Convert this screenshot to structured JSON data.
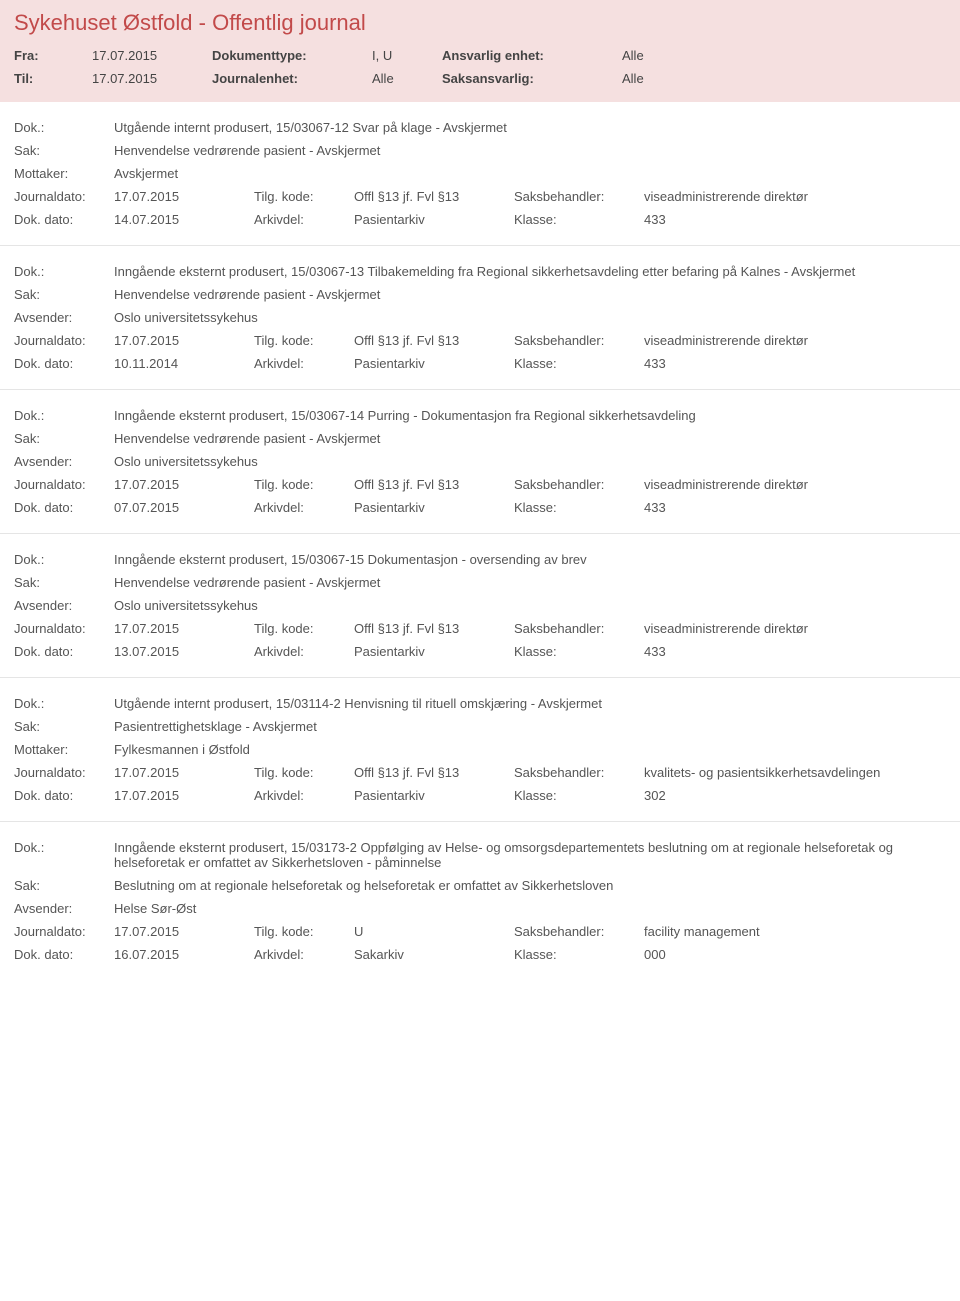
{
  "header": {
    "title": "Sykehuset Østfold - Offentlig journal",
    "row1": {
      "fra_label": "Fra:",
      "fra": "17.07.2015",
      "doktype_label": "Dokumenttype:",
      "doktype": "I, U",
      "enhet_label": "Ansvarlig enhet:",
      "enhet": "Alle"
    },
    "row2": {
      "til_label": "Til:",
      "til": "17.07.2015",
      "journalenhet_label": "Journalenhet:",
      "journalenhet": "Alle",
      "saks_label": "Saksansvarlig:",
      "saks": "Alle"
    }
  },
  "labels": {
    "dok": "Dok.:",
    "sak": "Sak:",
    "mottaker": "Mottaker:",
    "avsender": "Avsender:",
    "journaldato": "Journaldato:",
    "tilgkode": "Tilg. kode:",
    "saksbehandler": "Saksbehandler:",
    "dokdato": "Dok. dato:",
    "arkivdel": "Arkivdel:",
    "klasse": "Klasse:"
  },
  "entries": [
    {
      "dok": "Utgående internt produsert, 15/03067-12 Svar på klage - Avskjermet",
      "sak": "Henvendelse vedrørende pasient - Avskjermet",
      "party_label": "Mottaker:",
      "party": "Avskjermet",
      "journaldato": "17.07.2015",
      "tilgkode": "Offl §13 jf. Fvl §13",
      "saksbehandler": "viseadministrerende direktør",
      "dokdato": "14.07.2015",
      "arkivdel": "Pasientarkiv",
      "klasse": "433"
    },
    {
      "dok": "Inngående eksternt produsert, 15/03067-13 Tilbakemelding fra Regional sikkerhetsavdeling etter befaring på Kalnes - Avskjermet",
      "sak": "Henvendelse vedrørende pasient - Avskjermet",
      "party_label": "Avsender:",
      "party": "Oslo universitetssykehus",
      "journaldato": "17.07.2015",
      "tilgkode": "Offl §13 jf. Fvl §13",
      "saksbehandler": "viseadministrerende direktør",
      "dokdato": "10.11.2014",
      "arkivdel": "Pasientarkiv",
      "klasse": "433"
    },
    {
      "dok": "Inngående eksternt produsert, 15/03067-14 Purring - Dokumentasjon fra Regional sikkerhetsavdeling",
      "sak": "Henvendelse vedrørende pasient - Avskjermet",
      "party_label": "Avsender:",
      "party": "Oslo universitetssykehus",
      "journaldato": "17.07.2015",
      "tilgkode": "Offl §13 jf. Fvl §13",
      "saksbehandler": "viseadministrerende direktør",
      "dokdato": "07.07.2015",
      "arkivdel": "Pasientarkiv",
      "klasse": "433"
    },
    {
      "dok": "Inngående eksternt produsert, 15/03067-15 Dokumentasjon - oversending av brev",
      "sak": "Henvendelse vedrørende pasient - Avskjermet",
      "party_label": "Avsender:",
      "party": "Oslo universitetssykehus",
      "journaldato": "17.07.2015",
      "tilgkode": "Offl §13 jf. Fvl §13",
      "saksbehandler": "viseadministrerende direktør",
      "dokdato": "13.07.2015",
      "arkivdel": "Pasientarkiv",
      "klasse": "433"
    },
    {
      "dok": "Utgående internt produsert, 15/03114-2 Henvisning til rituell omskjæring - Avskjermet",
      "sak": "Pasientrettighetsklage - Avskjermet",
      "party_label": "Mottaker:",
      "party": "Fylkesmannen i Østfold",
      "journaldato": "17.07.2015",
      "tilgkode": "Offl §13 jf. Fvl §13",
      "saksbehandler": "kvalitets- og pasientsikkerhetsavdelingen",
      "dokdato": "17.07.2015",
      "arkivdel": "Pasientarkiv",
      "klasse": "302"
    },
    {
      "dok": "Inngående eksternt produsert, 15/03173-2 Oppfølging av Helse- og omsorgsdepartementets beslutning om at regionale helseforetak og helseforetak er omfattet av Sikkerhetsloven - påminnelse",
      "sak": "Beslutning om at regionale helseforetak og helseforetak er omfattet av Sikkerhetsloven",
      "party_label": "Avsender:",
      "party": "Helse Sør-Øst",
      "journaldato": "17.07.2015",
      "tilgkode": "U",
      "saksbehandler": "facility management",
      "dokdato": "16.07.2015",
      "arkivdel": "Sakarkiv",
      "klasse": "000"
    }
  ]
}
